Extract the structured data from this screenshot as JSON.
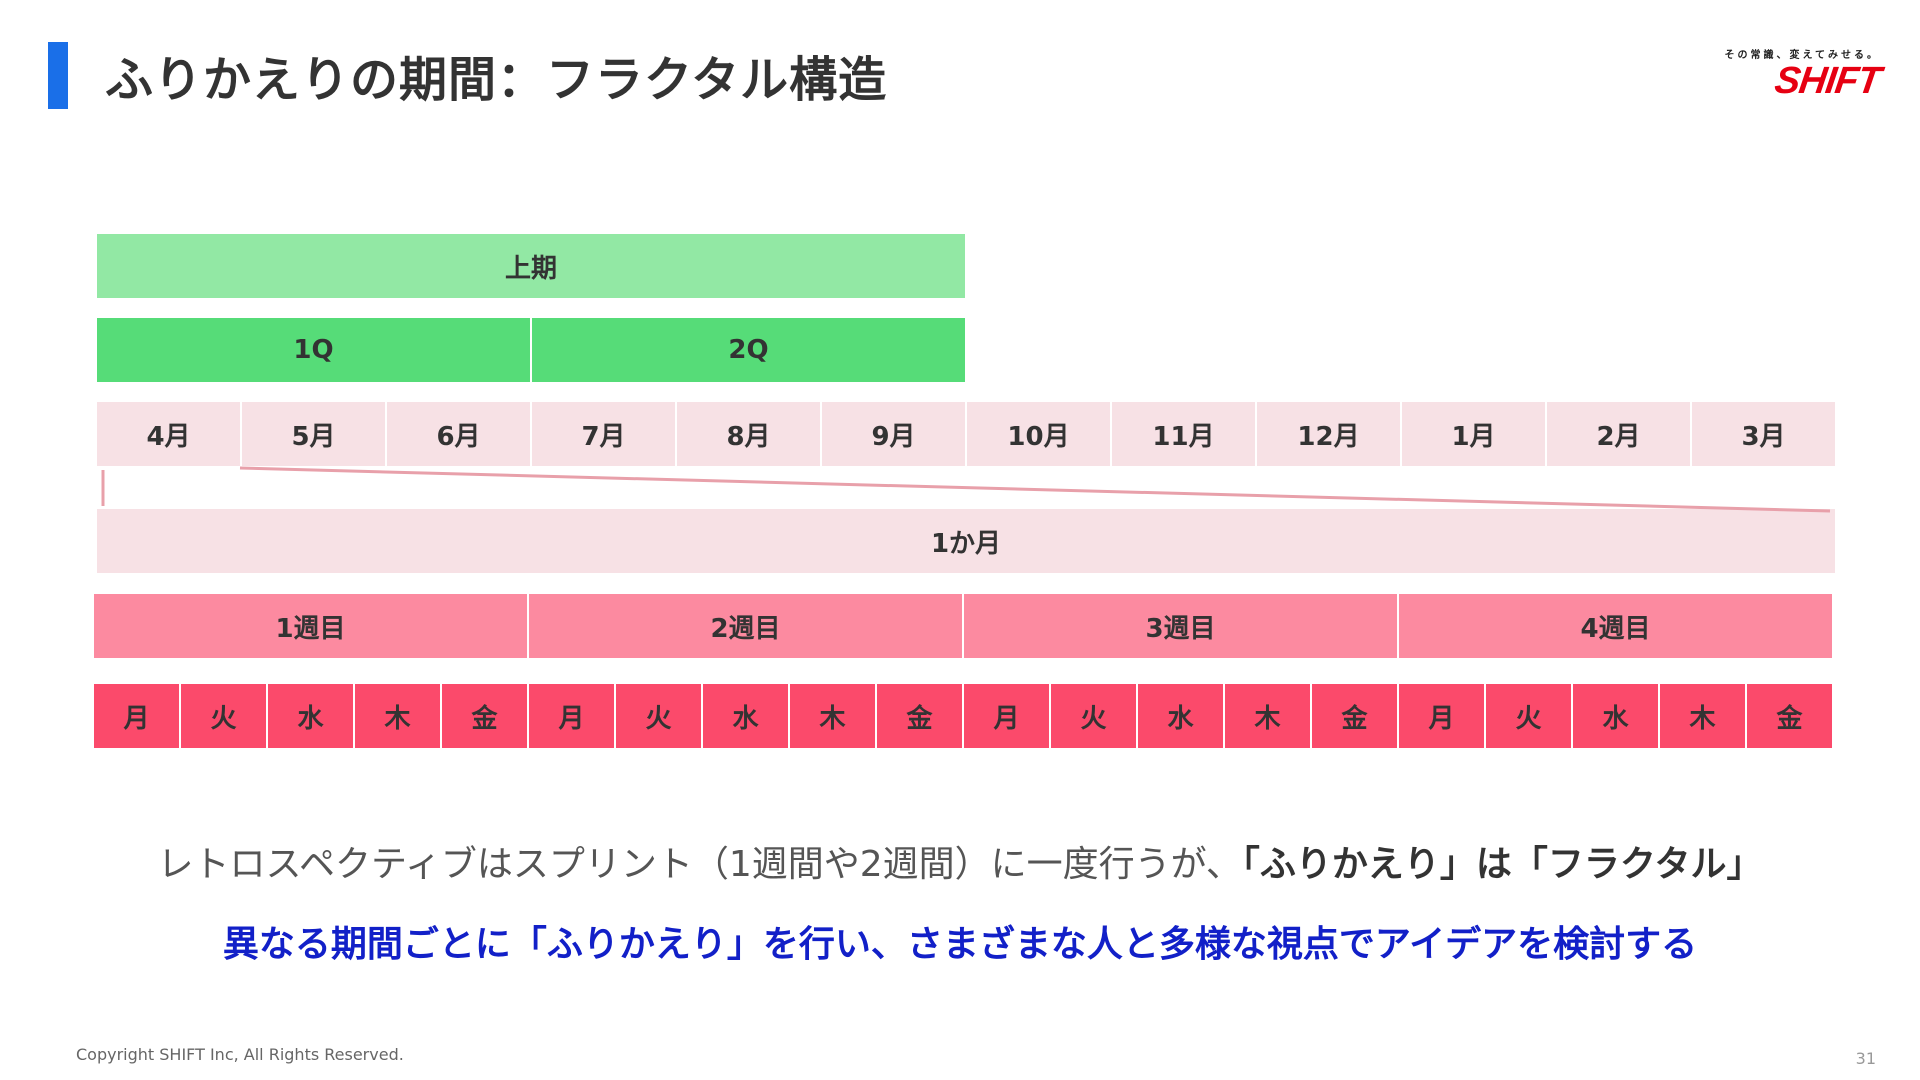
{
  "slide": {
    "title": "ふりかえりの期間：フラクタル構造",
    "page_number": "31",
    "copyright": "Copyright SHIFT Inc, All Rights Reserved.",
    "accent_color": "#1a6fe8"
  },
  "logo": {
    "tagline": "その常識、変えてみせる。",
    "wordmark": "SHIFT",
    "color": "#e60012"
  },
  "diagram": {
    "half_label": "上期",
    "quarters": [
      "1Q",
      "2Q"
    ],
    "months": [
      "4月",
      "5月",
      "6月",
      "7月",
      "8月",
      "9月",
      "10月",
      "11月",
      "12月",
      "1月",
      "2月",
      "3月"
    ],
    "one_month_label": "1か月",
    "weeks": [
      "1週目",
      "2週目",
      "3週目",
      "4週目"
    ],
    "days": [
      "月",
      "火",
      "水",
      "木",
      "金",
      "月",
      "火",
      "水",
      "木",
      "金",
      "月",
      "火",
      "水",
      "木",
      "金",
      "月",
      "火",
      "水",
      "木",
      "金"
    ],
    "colors": {
      "half": "#92e8a4",
      "quarter": "#56dc78",
      "month": "#f7e1e5",
      "week": "#fc8aa0",
      "day": "#fb4a6b",
      "zoom_line": "#e8a0aa"
    }
  },
  "captions": {
    "line1_plain": "レトロスペクティブはスプリント（1週間や2週間）に一度行うが、",
    "line1_bold": "「ふりかえり」は「フラクタル」",
    "line2": "異なる期間ごとに「ふりかえり」を行い、さまざまな人と多様な視点でアイデアを検討する"
  }
}
